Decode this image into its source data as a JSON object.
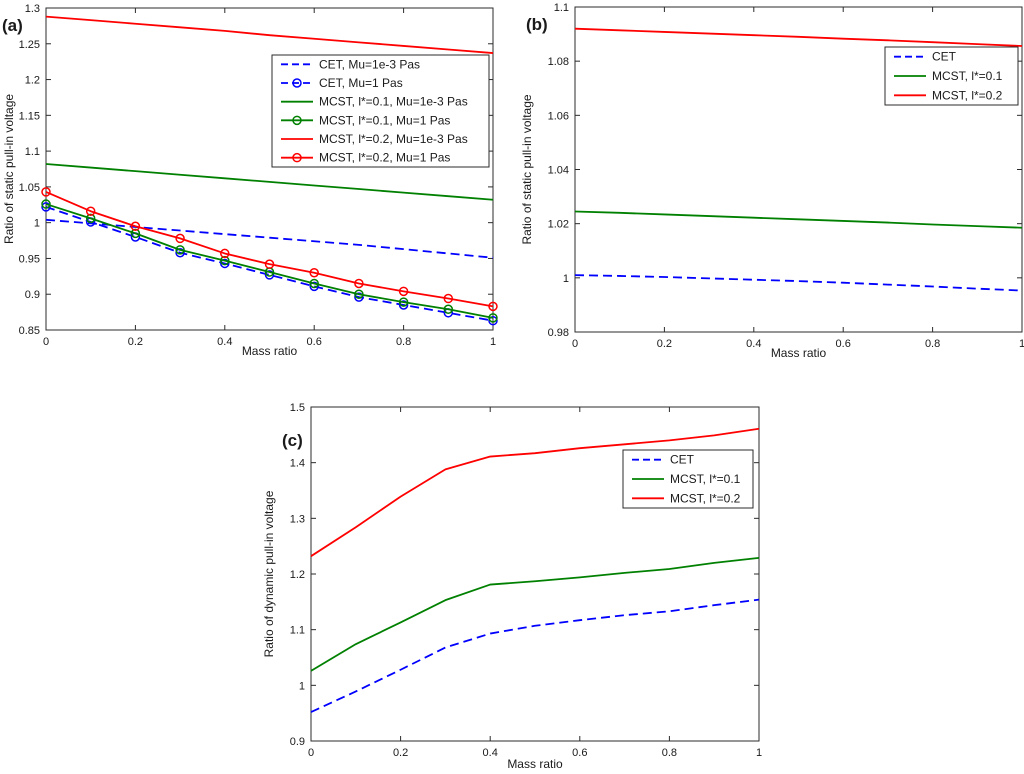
{
  "figure": {
    "background": "#ffffff",
    "text_color": "#1a1a1a",
    "axis_color": "#2b2b2b",
    "series_colors": {
      "cet_blue": "#0000ff",
      "mcst01_green": "#008000",
      "mcst02_red": "#ff0000"
    }
  },
  "chart_data": [
    {
      "id": "a",
      "panel_label": "(a)",
      "type": "line",
      "xlabel": "Mass ratio",
      "ylabel": "Ratio of static pull-in voltage",
      "xlim": [
        0,
        1
      ],
      "ylim": [
        0.85,
        1.3
      ],
      "xticks": [
        0,
        0.2,
        0.4,
        0.6,
        0.8,
        1
      ],
      "xtick_labels": [
        "0",
        "0.2",
        "0.4",
        "0.6",
        "0.8",
        "1"
      ],
      "yticks": [
        0.85,
        0.9,
        0.95,
        1,
        1.05,
        1.1,
        1.15,
        1.2,
        1.25,
        1.3
      ],
      "ytick_labels": [
        "0.85",
        "0.9",
        "0.95",
        "1",
        "1.05",
        "1.1",
        "1.15",
        "1.2",
        "1.25",
        "1.3"
      ],
      "grid": false,
      "legend_position": "upper-right-inside",
      "x": [
        0,
        0.1,
        0.2,
        0.3,
        0.4,
        0.5,
        0.6,
        0.7,
        0.8,
        0.9,
        1
      ],
      "series": [
        {
          "name": "CET, Mu=1e-3 Pas",
          "color": "#0000ff",
          "style": "dashed",
          "marker": "none",
          "values": [
            1.004,
            0.999,
            0.994,
            0.989,
            0.984,
            0.979,
            0.974,
            0.969,
            0.963,
            0.957,
            0.951
          ]
        },
        {
          "name": "CET, Mu=1 Pas",
          "color": "#0000ff",
          "style": "dashed",
          "marker": "circle",
          "values": [
            1.022,
            1.001,
            0.98,
            0.958,
            0.943,
            0.927,
            0.911,
            0.896,
            0.885,
            0.874,
            0.863
          ]
        },
        {
          "name": "MCST, l*=0.1, Mu=1e-3 Pas",
          "color": "#008000",
          "style": "solid",
          "marker": "none",
          "values": [
            1.082,
            1.077,
            1.072,
            1.067,
            1.062,
            1.057,
            1.052,
            1.047,
            1.042,
            1.037,
            1.032
          ]
        },
        {
          "name": "MCST, l*=0.1, Mu=1 Pas",
          "color": "#008000",
          "style": "solid",
          "marker": "circle",
          "values": [
            1.026,
            1.006,
            0.985,
            0.962,
            0.947,
            0.931,
            0.915,
            0.9,
            0.889,
            0.879,
            0.867
          ]
        },
        {
          "name": "MCST, l*=0.2, Mu=1e-3 Pas",
          "color": "#ff0000",
          "style": "solid",
          "marker": "none",
          "values": [
            1.288,
            1.283,
            1.278,
            1.273,
            1.268,
            1.262,
            1.257,
            1.252,
            1.247,
            1.242,
            1.237
          ]
        },
        {
          "name": "MCST, l*=0.2, Mu=1 Pas",
          "color": "#ff0000",
          "style": "solid",
          "marker": "circle",
          "values": [
            1.043,
            1.016,
            0.995,
            0.978,
            0.957,
            0.942,
            0.93,
            0.915,
            0.904,
            0.894,
            0.883
          ]
        }
      ]
    },
    {
      "id": "b",
      "panel_label": "(b)",
      "type": "line",
      "xlabel": "Mass ratio",
      "ylabel": "Ratio of static pull-in voltage",
      "xlim": [
        0,
        1
      ],
      "ylim": [
        0.98,
        1.1
      ],
      "xticks": [
        0,
        0.2,
        0.4,
        0.6,
        0.8,
        1
      ],
      "xtick_labels": [
        "0",
        "0.2",
        "0.4",
        "0.6",
        "0.8",
        "1"
      ],
      "yticks": [
        0.98,
        1,
        1.02,
        1.04,
        1.06,
        1.08,
        1.1
      ],
      "ytick_labels": [
        "0.98",
        "1",
        "1.02",
        "1.04",
        "1.06",
        "1.08",
        "1.1"
      ],
      "grid": false,
      "legend_position": "upper-right-inside",
      "x": [
        0,
        0.1,
        0.2,
        0.3,
        0.4,
        0.5,
        0.6,
        0.7,
        0.8,
        0.9,
        1
      ],
      "series": [
        {
          "name": "CET",
          "color": "#0000ff",
          "style": "dashed",
          "marker": "none",
          "values": [
            1.001,
            1.0007,
            1.0003,
            0.9998,
            0.9993,
            0.9988,
            0.9982,
            0.9975,
            0.9968,
            0.996,
            0.9953
          ]
        },
        {
          "name": "MCST, l*=0.1",
          "color": "#008000",
          "style": "solid",
          "marker": "none",
          "values": [
            1.0245,
            1.024,
            1.0234,
            1.0228,
            1.0222,
            1.0216,
            1.021,
            1.0204,
            1.0197,
            1.0191,
            1.0185
          ]
        },
        {
          "name": "MCST, l*=0.2",
          "color": "#ff0000",
          "style": "solid",
          "marker": "none",
          "values": [
            1.092,
            1.0914,
            1.0908,
            1.0902,
            1.0896,
            1.089,
            1.0883,
            1.0877,
            1.087,
            1.0863,
            1.0856
          ]
        }
      ]
    },
    {
      "id": "c",
      "panel_label": "(c)",
      "type": "line",
      "xlabel": "Mass ratio",
      "ylabel": "Ratio of dynamic pull-in voltage",
      "xlim": [
        0,
        1
      ],
      "ylim": [
        0.9,
        1.5
      ],
      "xticks": [
        0,
        0.2,
        0.4,
        0.6,
        0.8,
        1
      ],
      "xtick_labels": [
        "0",
        "0.2",
        "0.4",
        "0.6",
        "0.8",
        "1"
      ],
      "yticks": [
        0.9,
        1,
        1.1,
        1.2,
        1.3,
        1.4,
        1.5
      ],
      "ytick_labels": [
        "0.9",
        "1",
        "1.1",
        "1.2",
        "1.3",
        "1.4",
        "1.5"
      ],
      "grid": false,
      "legend_position": "upper-right-inside",
      "x": [
        0,
        0.1,
        0.2,
        0.3,
        0.4,
        0.5,
        0.6,
        0.7,
        0.8,
        0.9,
        1
      ],
      "series": [
        {
          "name": "CET",
          "color": "#0000ff",
          "style": "dashed",
          "marker": "none",
          "values": [
            0.952,
            0.989,
            1.028,
            1.068,
            1.093,
            1.107,
            1.117,
            1.126,
            1.133,
            1.144,
            1.154
          ]
        },
        {
          "name": "MCST, l*=0.1",
          "color": "#008000",
          "style": "solid",
          "marker": "none",
          "values": [
            1.026,
            1.074,
            1.113,
            1.153,
            1.181,
            1.187,
            1.194,
            1.202,
            1.209,
            1.22,
            1.229
          ]
        },
        {
          "name": "MCST, l*=0.2",
          "color": "#ff0000",
          "style": "solid",
          "marker": "none",
          "values": [
            1.232,
            1.284,
            1.339,
            1.388,
            1.411,
            1.417,
            1.426,
            1.433,
            1.44,
            1.449,
            1.461
          ]
        }
      ]
    }
  ]
}
